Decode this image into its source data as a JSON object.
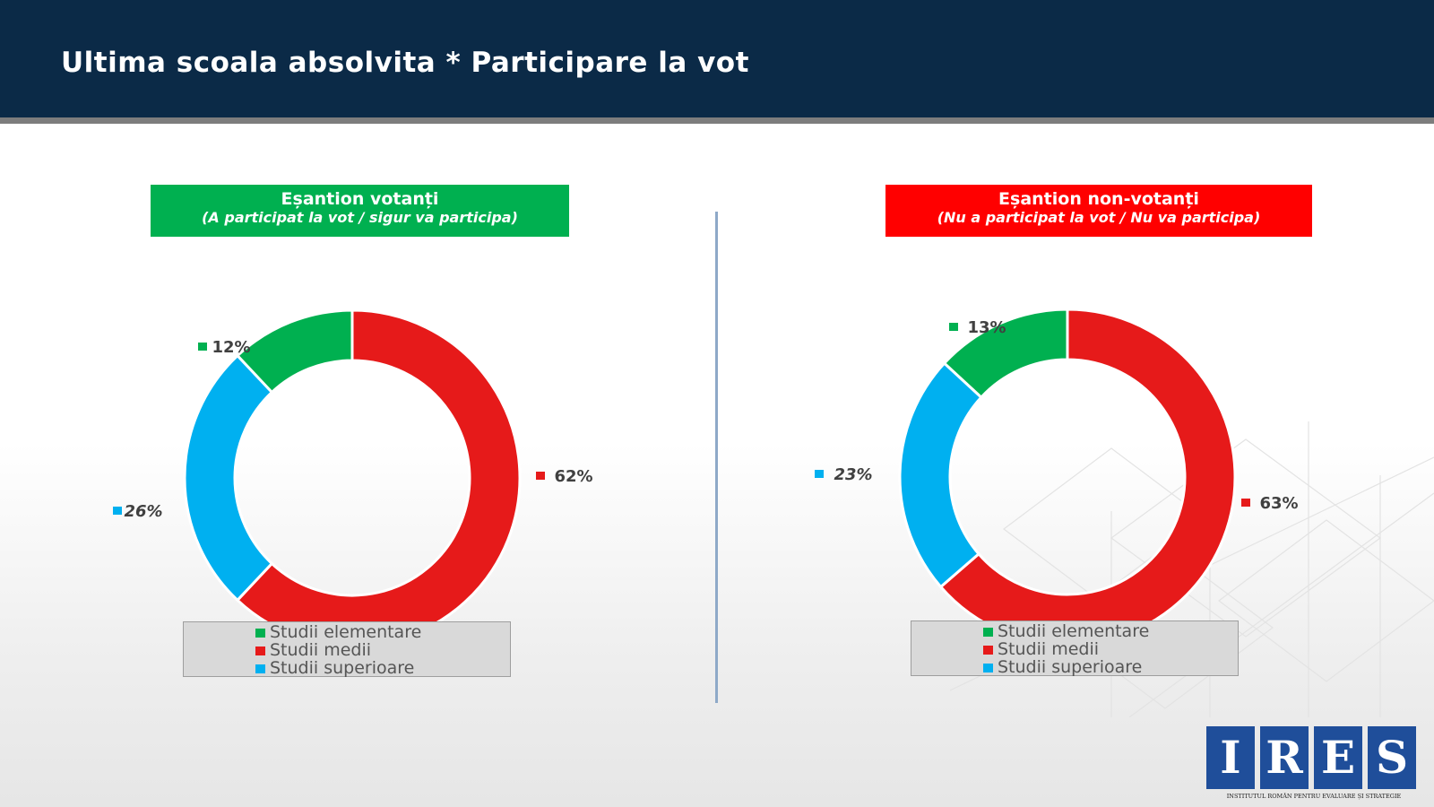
{
  "header": {
    "title": "Ultima scoala absolvita * Participare la vot"
  },
  "colors": {
    "header_bg": "#0b2a47",
    "elementare": "#00b050",
    "medii": "#e61a1a",
    "superioare": "#00b0f0",
    "title_left_bg": "#00b050",
    "title_right_bg": "#ff0000"
  },
  "chart_data": [
    {
      "type": "pie",
      "title": "Eșantion votanți",
      "subtitle": "(A participat la vot / sigur va participa)",
      "categories": [
        "Studii elementare",
        "Studii medii",
        "Studii superioare"
      ],
      "values": [
        12,
        62,
        26
      ],
      "labels": [
        "12%",
        "62%",
        "26%"
      ],
      "legend_position": "bottom"
    },
    {
      "type": "pie",
      "title": "Eșantion non-votanți",
      "subtitle": "(Nu a participat la vot / Nu va participa)",
      "categories": [
        "Studii elementare",
        "Studii medii",
        "Studii superioare"
      ],
      "values": [
        13,
        63,
        23
      ],
      "labels": [
        "13%",
        "63%",
        "23%"
      ],
      "legend_position": "bottom"
    }
  ],
  "logo": {
    "letters": [
      "I",
      "R",
      "E",
      "S"
    ],
    "subtitle": "INSTITUTUL ROMÂN PENTRU EVALUARE ȘI STRATEGIE"
  }
}
